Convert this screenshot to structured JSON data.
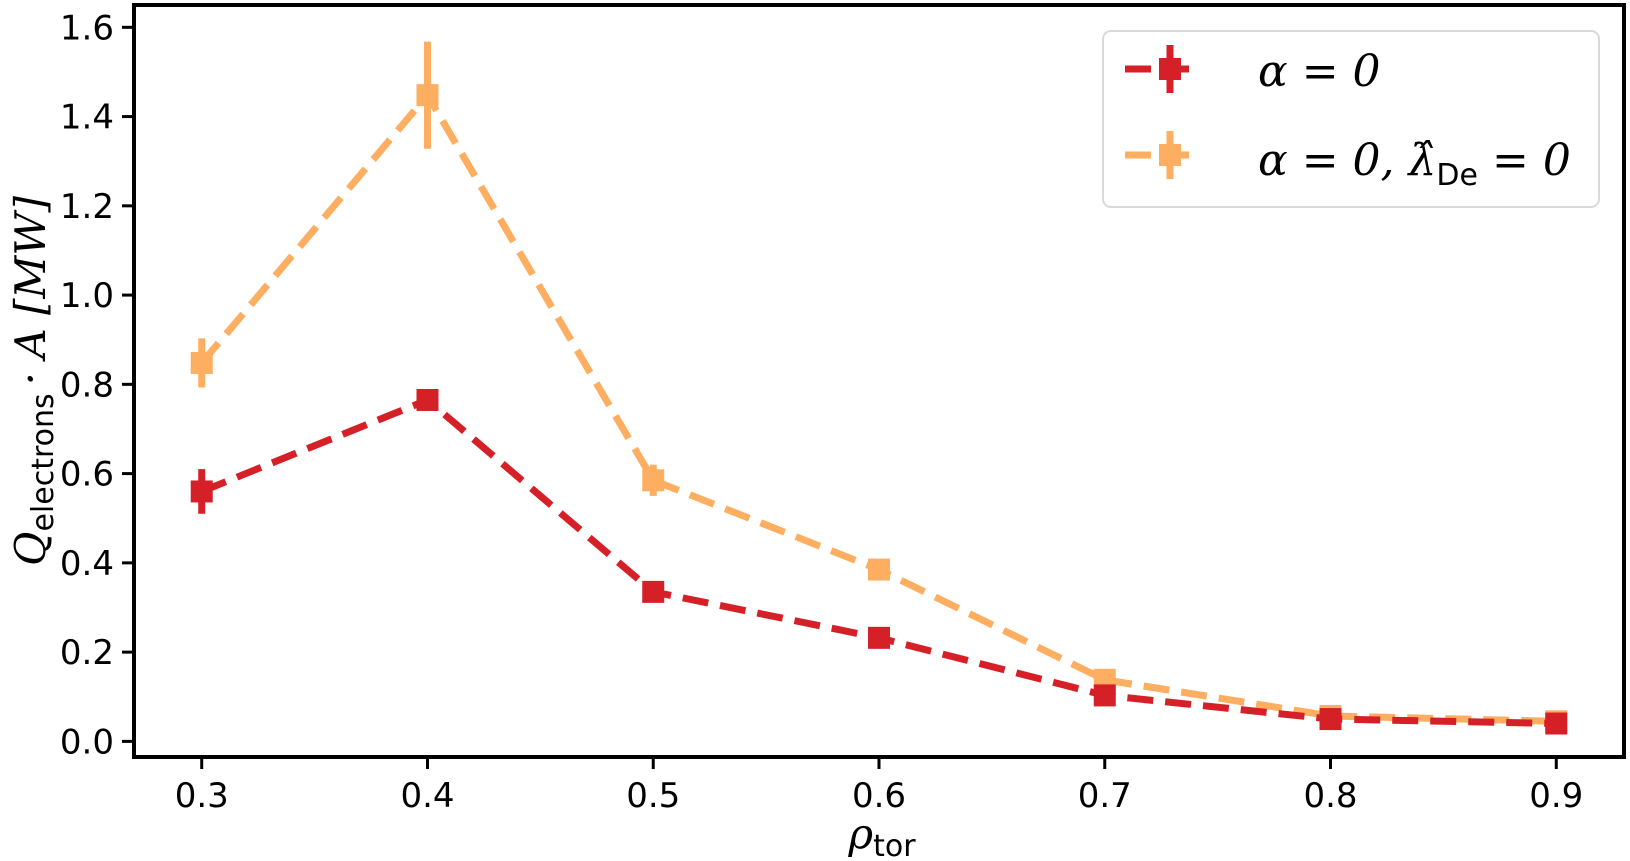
{
  "chart_data": {
    "type": "line",
    "x": [
      0.3,
      0.4,
      0.5,
      0.6,
      0.7,
      0.8,
      0.9
    ],
    "xlim": [
      0.27,
      0.93
    ],
    "ylim": [
      -0.035,
      1.65
    ],
    "xticks": [
      "0.3",
      "0.4",
      "0.5",
      "0.6",
      "0.7",
      "0.8",
      "0.9"
    ],
    "yticks": [
      "0.0",
      "0.2",
      "0.4",
      "0.6",
      "0.8",
      "1.0",
      "1.2",
      "1.4",
      "1.6"
    ],
    "xlabel": {
      "symbol": "ρ",
      "subscript": "tor"
    },
    "ylabel": {
      "symbol": "Q",
      "subscript": "electrons",
      "rest": "· A [MW]"
    },
    "grid": false,
    "legend_position": "top-right",
    "series": [
      {
        "name": "α = 0",
        "color": "#d62027",
        "values": [
          0.56,
          0.765,
          0.335,
          0.232,
          0.103,
          0.05,
          0.04
        ],
        "errors": [
          0.05,
          0.02,
          0.012,
          0.01,
          0.008,
          0.008,
          0.012
        ]
      },
      {
        "name": "α = 0, λ̂De = 0",
        "color": "#fdae61",
        "values": [
          0.848,
          1.448,
          0.585,
          0.385,
          0.138,
          0.057,
          0.045
        ],
        "errors": [
          0.055,
          0.12,
          0.035,
          0.015,
          0.015,
          0.008,
          0.015
        ]
      }
    ]
  },
  "legend": {
    "entries": [
      {
        "text": "α = 0"
      },
      {
        "prefix": "α = 0, ",
        "symbol": "λ̂",
        "subscript": "De",
        "suffix": " = 0"
      }
    ]
  }
}
